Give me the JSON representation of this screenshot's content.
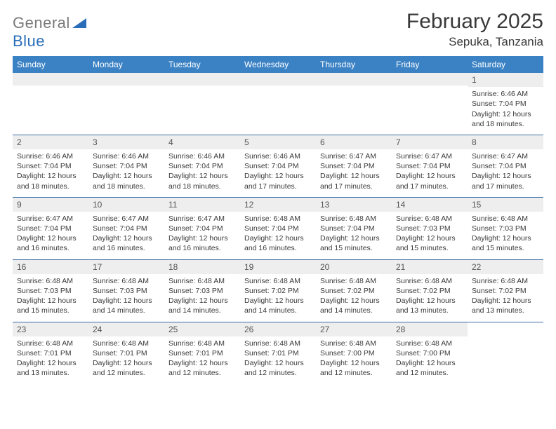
{
  "brand": {
    "part1": "General",
    "part2": "Blue"
  },
  "title": "February 2025",
  "location": "Sepuka, Tanzania",
  "colors": {
    "header_bg": "#3b82c4",
    "header_text": "#ffffff",
    "daynum_bg": "#eeeeee",
    "week_border": "#3b6fa8",
    "body_text": "#3a3a3a",
    "logo_gray": "#7a7a7a",
    "logo_blue": "#2a6db8"
  },
  "typography": {
    "title_fontsize": 30,
    "location_fontsize": 17,
    "dow_fontsize": 12,
    "cell_fontsize": 10.5
  },
  "dow": [
    "Sunday",
    "Monday",
    "Tuesday",
    "Wednesday",
    "Thursday",
    "Friday",
    "Saturday"
  ],
  "weeks": [
    [
      null,
      null,
      null,
      null,
      null,
      null,
      {
        "n": "1",
        "sr": "Sunrise: 6:46 AM",
        "ss": "Sunset: 7:04 PM",
        "dl": "Daylight: 12 hours and 18 minutes."
      }
    ],
    [
      {
        "n": "2",
        "sr": "Sunrise: 6:46 AM",
        "ss": "Sunset: 7:04 PM",
        "dl": "Daylight: 12 hours and 18 minutes."
      },
      {
        "n": "3",
        "sr": "Sunrise: 6:46 AM",
        "ss": "Sunset: 7:04 PM",
        "dl": "Daylight: 12 hours and 18 minutes."
      },
      {
        "n": "4",
        "sr": "Sunrise: 6:46 AM",
        "ss": "Sunset: 7:04 PM",
        "dl": "Daylight: 12 hours and 18 minutes."
      },
      {
        "n": "5",
        "sr": "Sunrise: 6:46 AM",
        "ss": "Sunset: 7:04 PM",
        "dl": "Daylight: 12 hours and 17 minutes."
      },
      {
        "n": "6",
        "sr": "Sunrise: 6:47 AM",
        "ss": "Sunset: 7:04 PM",
        "dl": "Daylight: 12 hours and 17 minutes."
      },
      {
        "n": "7",
        "sr": "Sunrise: 6:47 AM",
        "ss": "Sunset: 7:04 PM",
        "dl": "Daylight: 12 hours and 17 minutes."
      },
      {
        "n": "8",
        "sr": "Sunrise: 6:47 AM",
        "ss": "Sunset: 7:04 PM",
        "dl": "Daylight: 12 hours and 17 minutes."
      }
    ],
    [
      {
        "n": "9",
        "sr": "Sunrise: 6:47 AM",
        "ss": "Sunset: 7:04 PM",
        "dl": "Daylight: 12 hours and 16 minutes."
      },
      {
        "n": "10",
        "sr": "Sunrise: 6:47 AM",
        "ss": "Sunset: 7:04 PM",
        "dl": "Daylight: 12 hours and 16 minutes."
      },
      {
        "n": "11",
        "sr": "Sunrise: 6:47 AM",
        "ss": "Sunset: 7:04 PM",
        "dl": "Daylight: 12 hours and 16 minutes."
      },
      {
        "n": "12",
        "sr": "Sunrise: 6:48 AM",
        "ss": "Sunset: 7:04 PM",
        "dl": "Daylight: 12 hours and 16 minutes."
      },
      {
        "n": "13",
        "sr": "Sunrise: 6:48 AM",
        "ss": "Sunset: 7:04 PM",
        "dl": "Daylight: 12 hours and 15 minutes."
      },
      {
        "n": "14",
        "sr": "Sunrise: 6:48 AM",
        "ss": "Sunset: 7:03 PM",
        "dl": "Daylight: 12 hours and 15 minutes."
      },
      {
        "n": "15",
        "sr": "Sunrise: 6:48 AM",
        "ss": "Sunset: 7:03 PM",
        "dl": "Daylight: 12 hours and 15 minutes."
      }
    ],
    [
      {
        "n": "16",
        "sr": "Sunrise: 6:48 AM",
        "ss": "Sunset: 7:03 PM",
        "dl": "Daylight: 12 hours and 15 minutes."
      },
      {
        "n": "17",
        "sr": "Sunrise: 6:48 AM",
        "ss": "Sunset: 7:03 PM",
        "dl": "Daylight: 12 hours and 14 minutes."
      },
      {
        "n": "18",
        "sr": "Sunrise: 6:48 AM",
        "ss": "Sunset: 7:03 PM",
        "dl": "Daylight: 12 hours and 14 minutes."
      },
      {
        "n": "19",
        "sr": "Sunrise: 6:48 AM",
        "ss": "Sunset: 7:02 PM",
        "dl": "Daylight: 12 hours and 14 minutes."
      },
      {
        "n": "20",
        "sr": "Sunrise: 6:48 AM",
        "ss": "Sunset: 7:02 PM",
        "dl": "Daylight: 12 hours and 14 minutes."
      },
      {
        "n": "21",
        "sr": "Sunrise: 6:48 AM",
        "ss": "Sunset: 7:02 PM",
        "dl": "Daylight: 12 hours and 13 minutes."
      },
      {
        "n": "22",
        "sr": "Sunrise: 6:48 AM",
        "ss": "Sunset: 7:02 PM",
        "dl": "Daylight: 12 hours and 13 minutes."
      }
    ],
    [
      {
        "n": "23",
        "sr": "Sunrise: 6:48 AM",
        "ss": "Sunset: 7:01 PM",
        "dl": "Daylight: 12 hours and 13 minutes."
      },
      {
        "n": "24",
        "sr": "Sunrise: 6:48 AM",
        "ss": "Sunset: 7:01 PM",
        "dl": "Daylight: 12 hours and 12 minutes."
      },
      {
        "n": "25",
        "sr": "Sunrise: 6:48 AM",
        "ss": "Sunset: 7:01 PM",
        "dl": "Daylight: 12 hours and 12 minutes."
      },
      {
        "n": "26",
        "sr": "Sunrise: 6:48 AM",
        "ss": "Sunset: 7:01 PM",
        "dl": "Daylight: 12 hours and 12 minutes."
      },
      {
        "n": "27",
        "sr": "Sunrise: 6:48 AM",
        "ss": "Sunset: 7:00 PM",
        "dl": "Daylight: 12 hours and 12 minutes."
      },
      {
        "n": "28",
        "sr": "Sunrise: 6:48 AM",
        "ss": "Sunset: 7:00 PM",
        "dl": "Daylight: 12 hours and 12 minutes."
      },
      null
    ]
  ]
}
